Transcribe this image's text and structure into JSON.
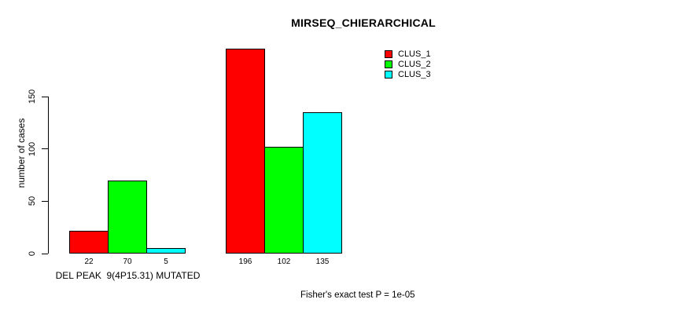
{
  "chart_data": {
    "type": "bar",
    "title": "MIRSEQ_CHIERARCHICAL",
    "ylabel": "number of cases",
    "ylim": [
      0,
      150
    ],
    "yticks": [
      0,
      50,
      100,
      150
    ],
    "grid": false,
    "legend_position": "top-right",
    "categories": [
      "DEL PEAK  9(4P15.31) MUTATED",
      ""
    ],
    "series": [
      {
        "name": "CLUS_1",
        "color": "#FF0000",
        "values": [
          22,
          196
        ]
      },
      {
        "name": "CLUS_2",
        "color": "#00FF00",
        "values": [
          70,
          102
        ]
      },
      {
        "name": "CLUS_3",
        "color": "#00FFFF",
        "values": [
          5,
          135
        ]
      }
    ],
    "bar_value_labels": [
      [
        22,
        70,
        5
      ],
      [
        196,
        102,
        135
      ]
    ],
    "annotation": "Fisher's exact test P = 1e-05"
  }
}
